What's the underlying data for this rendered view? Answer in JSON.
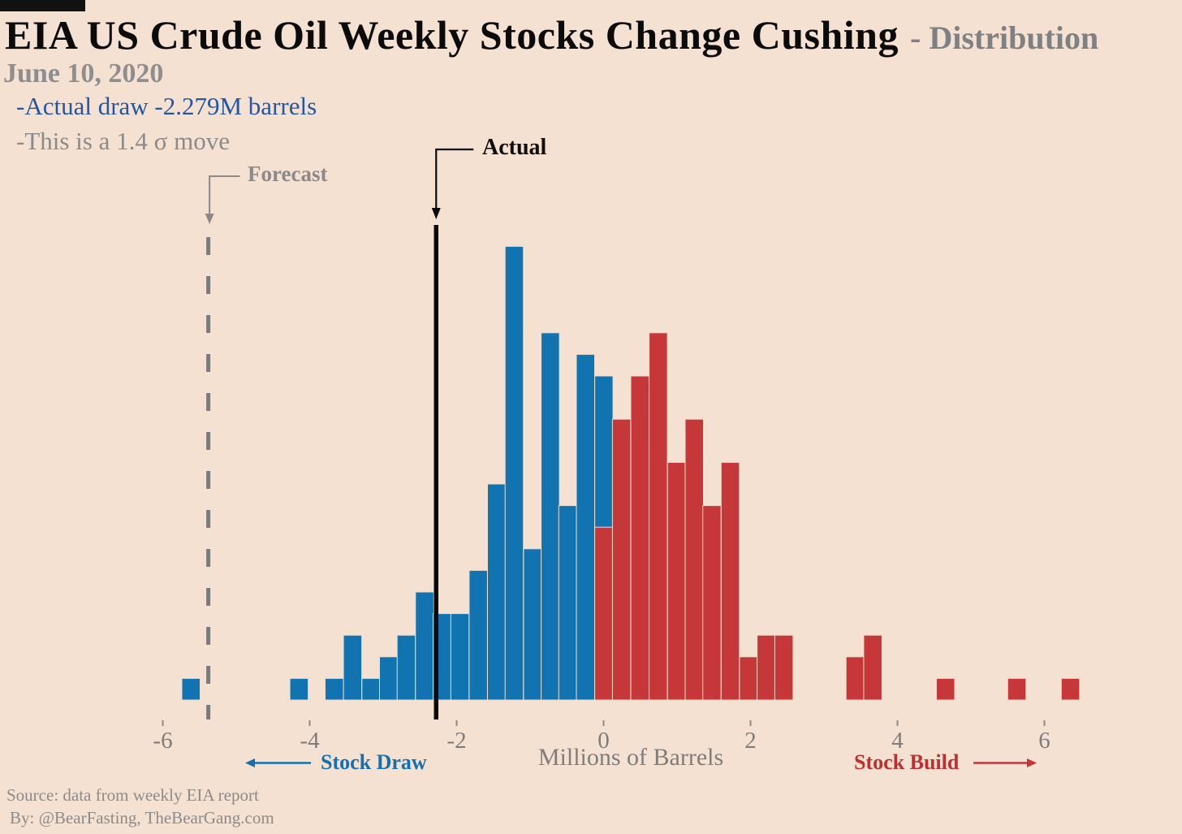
{
  "header": {
    "title": "EIA US Crude Oil Weekly Stocks Change Cushing",
    "title_suffix": "- Distribution",
    "date": "June 10, 2020",
    "note_primary": "-Actual draw -2.279M barrels",
    "note_secondary": "-This is a 1.4 σ move"
  },
  "annotations": {
    "forecast_label": "Forecast",
    "actual_label": "Actual",
    "stock_draw_label": "Stock Draw",
    "stock_build_label": "Stock Build"
  },
  "footer": {
    "source_line": "Source: data from  weekly EIA report",
    "byline": "By: @BearFasting, TheBearGang.com"
  },
  "colors": {
    "background": "#f5e1d1",
    "draw_blue": "#1173b0",
    "build_red": "#c53738",
    "accent_text_blue": "#2356a4",
    "gray_text": "#8b8b8b",
    "black_line": "#0a0a0a",
    "gray_line": "#7a7a7a",
    "bar_edge": "#eedcc9"
  },
  "chart_data": {
    "type": "bar",
    "subtype": "histogram",
    "title": "EIA US Crude Oil Weekly Stocks Change Cushing - Distribution",
    "xlabel": "Millions of Barrels",
    "ylabel": "",
    "xticks": [
      -6,
      -4,
      -2,
      0,
      2,
      4,
      6
    ],
    "xlim": [
      -6.6,
      7.8
    ],
    "ylim": [
      0,
      22
    ],
    "grid": false,
    "bin_width": 0.25,
    "actual_value": -2.279,
    "forecast_value": -5.38,
    "sigma_move": 1.4,
    "legend_position": "none",
    "series_colors": {
      "draw": "#1173b0",
      "build": "#c53738"
    },
    "bars_note": "x is bin left edge in millions of barrels; count is weekly frequency; draw bars overlap build overlay at -0.12",
    "bars": [
      {
        "x": -5.74,
        "count": 1,
        "series": "draw"
      },
      {
        "x": -4.27,
        "count": 1,
        "series": "draw"
      },
      {
        "x": -3.79,
        "count": 1,
        "series": "draw"
      },
      {
        "x": -3.54,
        "count": 3,
        "series": "draw"
      },
      {
        "x": -3.29,
        "count": 1,
        "series": "draw"
      },
      {
        "x": -3.05,
        "count": 2,
        "series": "draw"
      },
      {
        "x": -2.81,
        "count": 3,
        "series": "draw"
      },
      {
        "x": -2.56,
        "count": 5,
        "series": "draw"
      },
      {
        "x": -2.32,
        "count": 4,
        "series": "draw"
      },
      {
        "x": -2.08,
        "count": 4,
        "series": "draw"
      },
      {
        "x": -1.83,
        "count": 6,
        "series": "draw"
      },
      {
        "x": -1.58,
        "count": 10,
        "series": "draw"
      },
      {
        "x": -1.34,
        "count": 21,
        "series": "draw"
      },
      {
        "x": -1.09,
        "count": 7,
        "series": "draw"
      },
      {
        "x": -0.85,
        "count": 17,
        "series": "draw"
      },
      {
        "x": -0.61,
        "count": 9,
        "series": "draw"
      },
      {
        "x": -0.37,
        "count": 16,
        "series": "draw"
      },
      {
        "x": -0.12,
        "count": 15,
        "series": "draw"
      },
      {
        "x": -0.12,
        "count": 8,
        "series": "build"
      },
      {
        "x": 0.12,
        "count": 13,
        "series": "build"
      },
      {
        "x": 0.37,
        "count": 15,
        "series": "build"
      },
      {
        "x": 0.62,
        "count": 17,
        "series": "build"
      },
      {
        "x": 0.87,
        "count": 11,
        "series": "build"
      },
      {
        "x": 1.11,
        "count": 13,
        "series": "build"
      },
      {
        "x": 1.35,
        "count": 9,
        "series": "build"
      },
      {
        "x": 1.6,
        "count": 11,
        "series": "build"
      },
      {
        "x": 1.85,
        "count": 2,
        "series": "build"
      },
      {
        "x": 2.09,
        "count": 3,
        "series": "build"
      },
      {
        "x": 2.33,
        "count": 3,
        "series": "build"
      },
      {
        "x": 3.3,
        "count": 2,
        "series": "build"
      },
      {
        "x": 3.54,
        "count": 3,
        "series": "build"
      },
      {
        "x": 4.53,
        "count": 1,
        "series": "build"
      },
      {
        "x": 5.5,
        "count": 1,
        "series": "build"
      },
      {
        "x": 6.23,
        "count": 1,
        "series": "build"
      }
    ]
  }
}
